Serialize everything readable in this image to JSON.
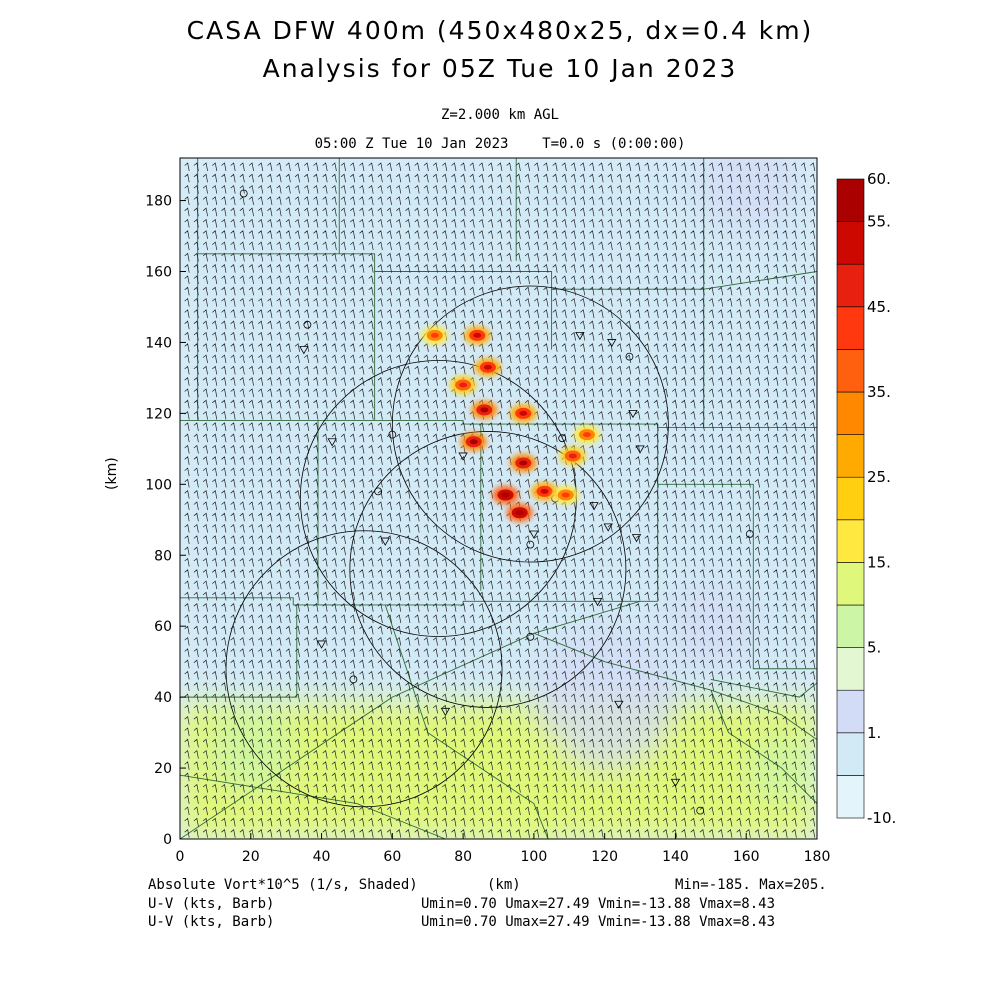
{
  "header": {
    "title_line1": "CASA DFW 400m (450x480x25, dx=0.4 km)",
    "title_line2": "Analysis for 05Z Tue 10 Jan 2023",
    "level": "Z=2.000 km AGL",
    "valid_time": "05:00 Z Tue 10 Jan 2023    T=0.0 s (0:00:00)"
  },
  "footer": {
    "field1": "Absolute Vort*10^5 (1/s, Shaded)",
    "xunit": "(km)",
    "minmax": "Min=-185. Max=205.",
    "field2": "U-V (kts, Barb)",
    "field3": "U-V (kts, Barb)",
    "uv_stats2": "Umin=0.70 Umax=27.49 Vmin=-13.88 Vmax=8.43",
    "uv_stats3": "Umin=0.70 Umax=27.49 Vmin=-13.88 Vmax=8.43"
  },
  "chart_data": {
    "type": "heatmap",
    "xlabel": "(km)",
    "ylabel": "(km)",
    "xlim": [
      0,
      180
    ],
    "ylim": [
      0,
      192
    ],
    "x_ticks": [
      0,
      20,
      40,
      60,
      80,
      100,
      120,
      140,
      160,
      180
    ],
    "y_ticks": [
      0,
      20,
      40,
      60,
      80,
      100,
      120,
      140,
      160,
      180
    ],
    "colorbar": {
      "labels": [
        "60.",
        "55.",
        "45.",
        "35.",
        "25.",
        "15.",
        "5.",
        "1.",
        "-10."
      ],
      "levels": [
        -10,
        -5,
        1,
        3,
        5,
        10,
        15,
        20,
        25,
        30,
        35,
        40,
        45,
        50,
        55,
        60
      ],
      "colors": [
        "#e4f4fb",
        "#d2e9f6",
        "#d3dcf6",
        "#e2f7d2",
        "#ccf5a6",
        "#dff77a",
        "#ffe840",
        "#ffcf10",
        "#ffaa00",
        "#ff8800",
        "#ff6010",
        "#ff3810",
        "#e82010",
        "#cc0800",
        "#aa0000"
      ]
    },
    "radar_rings": [
      {
        "cx": 99,
        "cy": 117,
        "r": 39
      },
      {
        "cx": 73,
        "cy": 96,
        "r": 39
      },
      {
        "cx": 87,
        "cy": 76,
        "r": 39
      },
      {
        "cx": 52,
        "cy": 48,
        "r": 39
      }
    ],
    "field_regions": [
      {
        "label": "southern band vorticity 5-15",
        "x": [
          0,
          180
        ],
        "y": [
          0,
          39
        ],
        "value": 10
      },
      {
        "label": "northern vorticity 1-5",
        "x": [
          0,
          180
        ],
        "y": [
          39,
          192
        ],
        "value": 0
      }
    ],
    "storm_cores": [
      {
        "x": 72,
        "y": 142,
        "value": 40
      },
      {
        "x": 84,
        "y": 142,
        "value": 50
      },
      {
        "x": 87,
        "y": 133,
        "value": 50
      },
      {
        "x": 80,
        "y": 128,
        "value": 45
      },
      {
        "x": 86,
        "y": 121,
        "value": 55
      },
      {
        "x": 97,
        "y": 120,
        "value": 50
      },
      {
        "x": 83,
        "y": 112,
        "value": 55
      },
      {
        "x": 97,
        "y": 106,
        "value": 55
      },
      {
        "x": 111,
        "y": 108,
        "value": 45
      },
      {
        "x": 115,
        "y": 114,
        "value": 40
      },
      {
        "x": 92,
        "y": 97,
        "value": 60
      },
      {
        "x": 96,
        "y": 92,
        "value": 60
      },
      {
        "x": 103,
        "y": 98,
        "value": 50
      },
      {
        "x": 109,
        "y": 97,
        "value": 40
      }
    ],
    "wind": {
      "units": "kts",
      "u_range": [
        0.7,
        27.49
      ],
      "v_range": [
        -13.88,
        8.43
      ]
    }
  }
}
